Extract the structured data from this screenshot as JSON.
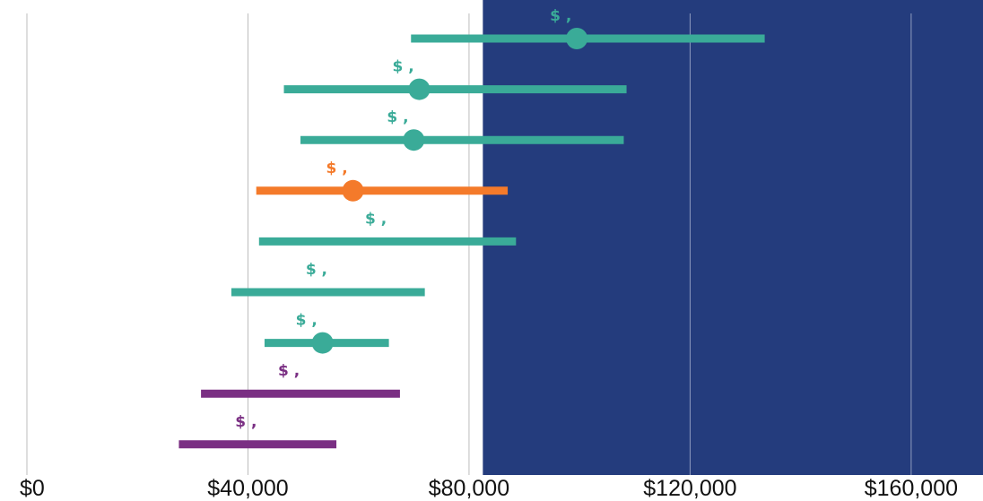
{
  "chart_data": {
    "type": "range",
    "title": "",
    "xlabel": "",
    "ylabel": "",
    "xlim": [
      0,
      173000
    ],
    "x_ticks": [
      0,
      40000,
      80000,
      120000,
      160000
    ],
    "x_tick_labels": [
      "$0",
      "$40,000",
      "$80,000",
      "$120,000",
      "$160,000"
    ],
    "grid": "vertical",
    "shaded_region": {
      "from": 82500,
      "to": 173000,
      "color": "#243c7d"
    },
    "rows": [
      {
        "low": 69500,
        "high": 133500,
        "point": 99500,
        "label": "$ ,",
        "color": "#3aab98"
      },
      {
        "low": 46500,
        "high": 108500,
        "point": 71000,
        "label": "$ ,",
        "color": "#3aab98"
      },
      {
        "low": 49500,
        "high": 108000,
        "point": 70000,
        "label": "$ ,",
        "color": "#3aab98"
      },
      {
        "low": 41500,
        "high": 87000,
        "point": 59000,
        "label": "$ ,",
        "color": "#f47a2a"
      },
      {
        "low": 42000,
        "high": 88500,
        "point": null,
        "label": "$ ,",
        "color": "#3aab98"
      },
      {
        "low": 37000,
        "high": 72000,
        "point": null,
        "label": "$ ,",
        "color": "#3aab98"
      },
      {
        "low": 43000,
        "high": 65500,
        "point": 53500,
        "label": "$ ,",
        "color": "#3aab98"
      },
      {
        "low": 31500,
        "high": 67500,
        "point": null,
        "label": "$ ,",
        "color": "#7a2f83"
      },
      {
        "low": 27500,
        "high": 56000,
        "point": null,
        "label": "$ ,",
        "color": "#7a2f83"
      }
    ]
  }
}
